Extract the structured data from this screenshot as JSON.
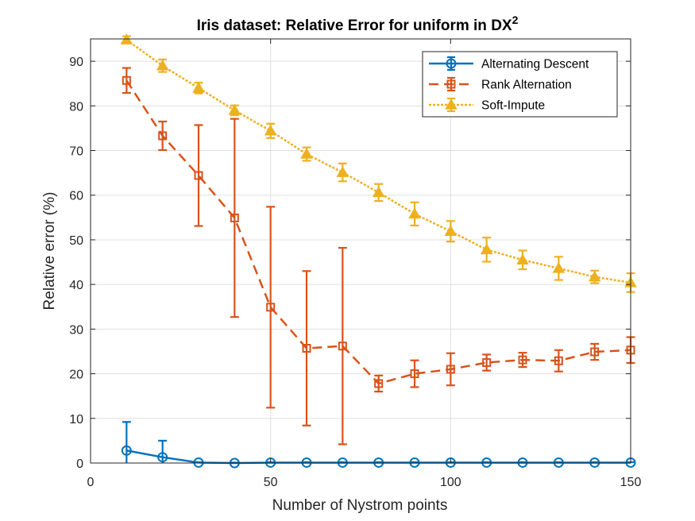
{
  "chart_data": {
    "type": "line",
    "title": "Iris dataset: Relative Error for uniform in DX",
    "title_superscript": "2",
    "xlabel": "Number of Nystrom points",
    "ylabel": "Relative error (%)",
    "xlim": [
      0,
      150
    ],
    "ylim": [
      0,
      95
    ],
    "xticks": [
      0,
      50,
      100,
      150
    ],
    "yticks": [
      0,
      10,
      20,
      30,
      40,
      50,
      60,
      70,
      80,
      90
    ],
    "grid": true,
    "legend_position": "top-right",
    "x": [
      10,
      20,
      30,
      40,
      50,
      60,
      70,
      80,
      90,
      100,
      110,
      120,
      130,
      140,
      150
    ],
    "series": [
      {
        "name": "Alternating Descent",
        "color": "#0072BD",
        "line_style": "solid",
        "marker": "circle",
        "values": [
          2.8,
          1.3,
          0.1,
          0.0,
          0.1,
          0.1,
          0.1,
          0.1,
          0.1,
          0.1,
          0.1,
          0.1,
          0.1,
          0.1,
          0.1
        ],
        "error": [
          6.4,
          3.7,
          0.1,
          0.1,
          0.1,
          0.1,
          0.1,
          0.1,
          0.1,
          0.1,
          0.1,
          0.1,
          0.1,
          0.1,
          0.1
        ]
      },
      {
        "name": "Rank Alternation",
        "color": "#D95319",
        "line_style": "dashed",
        "marker": "square",
        "values": [
          85.7,
          73.3,
          64.4,
          54.9,
          34.9,
          25.7,
          26.2,
          17.8,
          20.0,
          21.0,
          22.5,
          23.1,
          22.9,
          24.9,
          25.3
        ],
        "error": [
          2.8,
          3.2,
          11.3,
          22.2,
          22.5,
          17.3,
          22.0,
          1.8,
          3.0,
          3.6,
          1.8,
          1.6,
          2.4,
          1.8,
          2.9
        ]
      },
      {
        "name": "Soft-Impute",
        "color": "#EDB120",
        "line_style": "dotted",
        "marker": "triangle",
        "values": [
          94.8,
          89.0,
          84.0,
          79.0,
          74.4,
          69.2,
          65.1,
          60.6,
          55.8,
          51.9,
          47.8,
          45.5,
          43.6,
          41.7,
          40.4
        ],
        "error": [
          0.8,
          1.4,
          1.2,
          1.1,
          1.6,
          1.5,
          2.0,
          1.9,
          2.6,
          2.3,
          2.7,
          2.1,
          2.6,
          1.4,
          2.1
        ]
      }
    ]
  }
}
